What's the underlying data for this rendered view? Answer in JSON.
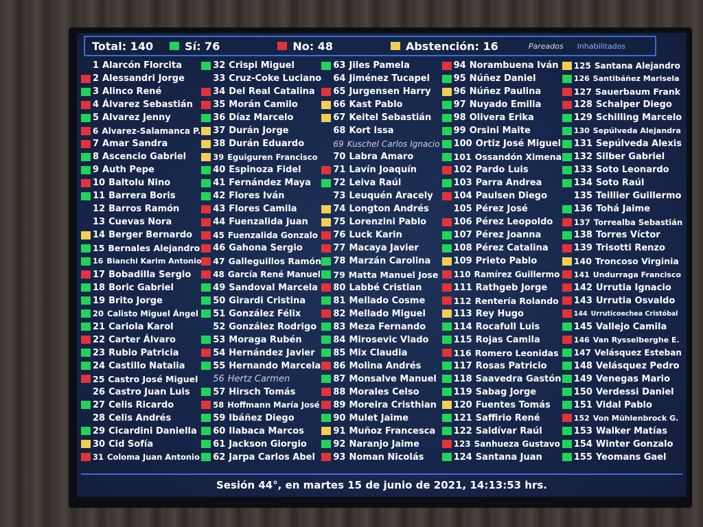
{
  "header": {
    "total": "Total: 140",
    "si": "Sí: 76",
    "no": "No: 48",
    "abstencion": "Abstención: 16",
    "pareados": "Pareados",
    "inhabilitados": "Inhabilitados"
  },
  "colors": {
    "si": "#22d35a",
    "no": "#e2323a",
    "abstencion": "#f2cf53",
    "background": "#16264a"
  },
  "footer": "Sesión 44°, en martes 15 de junio de 2021, 14:13:53 hrs.",
  "members": [
    [
      "1",
      "Alarcón Florcita",
      ""
    ],
    [
      "2",
      "Alessandri Jorge",
      "N"
    ],
    [
      "3",
      "Alinco René",
      "S"
    ],
    [
      "4",
      "Álvarez Sebastián",
      "N"
    ],
    [
      "5",
      "Alvarez Jenny",
      "S"
    ],
    [
      "6",
      "Alvarez-Salamanca P.",
      "N"
    ],
    [
      "7",
      "Amar Sandra",
      "N"
    ],
    [
      "8",
      "Ascencio Gabriel",
      "S"
    ],
    [
      "9",
      "Auth Pepe",
      "S"
    ],
    [
      "10",
      "Baltolu Nino",
      "N"
    ],
    [
      "11",
      "Barrera Boris",
      "S"
    ],
    [
      "12",
      "Barros Ramón",
      ""
    ],
    [
      "13",
      "Cuevas Nora",
      ""
    ],
    [
      "14",
      "Berger Bernardo",
      "A"
    ],
    [
      "15",
      "Bernales Alejandro",
      "S"
    ],
    [
      "16",
      "Bianchi Karim Antonio",
      "S"
    ],
    [
      "17",
      "Bobadilla Sergio",
      "N"
    ],
    [
      "18",
      "Boric Gabriel",
      "S"
    ],
    [
      "19",
      "Brito Jorge",
      "S"
    ],
    [
      "20",
      "Calisto Miguel Ángel",
      "S"
    ],
    [
      "21",
      "Cariola Karol",
      "S"
    ],
    [
      "22",
      "Carter Álvaro",
      "N"
    ],
    [
      "23",
      "Rubio Patricia",
      "S"
    ],
    [
      "24",
      "Castillo Natalia",
      "S"
    ],
    [
      "25",
      "Castro José Miguel",
      "N"
    ],
    [
      "26",
      "Castro Juan Luis",
      ""
    ],
    [
      "27",
      "Celis Ricardo",
      "S"
    ],
    [
      "28",
      "Celis Andrés",
      ""
    ],
    [
      "29",
      "Cicardini Daniella",
      "S"
    ],
    [
      "30",
      "Cid Sofía",
      "A"
    ],
    [
      "31",
      "Coloma Juan Antonio",
      "N"
    ],
    [
      "32",
      "Crispi Miguel",
      "S"
    ],
    [
      "33",
      "Cruz-Coke Luciano",
      ""
    ],
    [
      "34",
      "Del Real Catalina",
      "N"
    ],
    [
      "35",
      "Morán Camilo",
      "N"
    ],
    [
      "36",
      "Díaz Marcelo",
      "S"
    ],
    [
      "37",
      "Durán Jorge",
      "A"
    ],
    [
      "38",
      "Durán Eduardo",
      "A"
    ],
    [
      "39",
      "Eguiguren Francisco",
      "A"
    ],
    [
      "40",
      "Espinoza Fidel",
      "S"
    ],
    [
      "41",
      "Fernández Maya",
      "S"
    ],
    [
      "42",
      "Flores Iván",
      "S"
    ],
    [
      "43",
      "Flores Camila",
      "N"
    ],
    [
      "44",
      "Fuenzalida Juan",
      "N"
    ],
    [
      "45",
      "Fuenzalida Gonzalo",
      "N"
    ],
    [
      "46",
      "Gahona Sergio",
      "N"
    ],
    [
      "47",
      "Galleguillos Ramón",
      "N"
    ],
    [
      "48",
      "García René Manuel",
      "N"
    ],
    [
      "49",
      "Sandoval Marcela",
      "S"
    ],
    [
      "50",
      "Girardi Cristina",
      "S"
    ],
    [
      "51",
      "González Félix",
      "S"
    ],
    [
      "52",
      "González Rodrigo",
      ""
    ],
    [
      "53",
      "Moraga Rubén",
      "S"
    ],
    [
      "54",
      "Hernández Javier",
      "N"
    ],
    [
      "55",
      "Hernando Marcela",
      "S"
    ],
    [
      "56",
      "Hertz Carmen",
      "P"
    ],
    [
      "57",
      "Hirsch Tomás",
      "S"
    ],
    [
      "58",
      "Hoffmann María José",
      "N"
    ],
    [
      "59",
      "Ibáñez Diego",
      "S"
    ],
    [
      "60",
      "Ilabaca Marcos",
      "S"
    ],
    [
      "61",
      "Jackson Giorgio",
      "S"
    ],
    [
      "62",
      "Jarpa Carlos Abel",
      "S"
    ],
    [
      "63",
      "Jiles Pamela",
      "S"
    ],
    [
      "64",
      "Jiménez Tucapel",
      ""
    ],
    [
      "65",
      "Jurgensen Harry",
      "N"
    ],
    [
      "66",
      "Kast Pablo",
      "A"
    ],
    [
      "67",
      "Keitel Sebastián",
      "A"
    ],
    [
      "68",
      "Kort Issa",
      ""
    ],
    [
      "69",
      "Kuschel Carlos Ignacio",
      "P"
    ],
    [
      "70",
      "Labra Amaro",
      ""
    ],
    [
      "71",
      "Lavín Joaquín",
      "N"
    ],
    [
      "72",
      "Leiva Raúl",
      "S"
    ],
    [
      "73",
      "Leuquén Aracely",
      ""
    ],
    [
      "74",
      "Longton Andrés",
      "A"
    ],
    [
      "75",
      "Lorenzini Pablo",
      "A"
    ],
    [
      "76",
      "Luck Karin",
      "N"
    ],
    [
      "77",
      "Macaya Javier",
      "N"
    ],
    [
      "78",
      "Marzán Carolina",
      "S"
    ],
    [
      "79",
      "Matta Manuel Jose",
      "S"
    ],
    [
      "80",
      "Labbé Cristian",
      "N"
    ],
    [
      "81",
      "Mellado Cosme",
      "S"
    ],
    [
      "82",
      "Mellado Miguel",
      "N"
    ],
    [
      "83",
      "Meza Fernando",
      "S"
    ],
    [
      "84",
      "Mirosevic Vlado",
      "S"
    ],
    [
      "85",
      "Mix Claudia",
      "S"
    ],
    [
      "86",
      "Molina Andrés",
      "N"
    ],
    [
      "87",
      "Monsalve Manuel",
      "S"
    ],
    [
      "88",
      "Morales Celso",
      "N"
    ],
    [
      "89",
      "Moreira Cristhian",
      "N"
    ],
    [
      "90",
      "Mulet Jaime",
      "S"
    ],
    [
      "91",
      "Muñoz Francesca",
      "A"
    ],
    [
      "92",
      "Naranjo Jaime",
      "S"
    ],
    [
      "93",
      "Noman Nicolás",
      "N"
    ],
    [
      "94",
      "Norambuena Iván",
      "N"
    ],
    [
      "95",
      "Núñez Daniel",
      "S"
    ],
    [
      "96",
      "Núñez Paulina",
      "A"
    ],
    [
      "97",
      "Nuyado Emilia",
      "S"
    ],
    [
      "98",
      "Olivera Erika",
      "S"
    ],
    [
      "99",
      "Orsini Maite",
      "S"
    ],
    [
      "100",
      "Ortiz José Miguel",
      "S"
    ],
    [
      "101",
      "Ossandón Ximena",
      "S"
    ],
    [
      "102",
      "Pardo Luis",
      "N"
    ],
    [
      "103",
      "Parra Andrea",
      "S"
    ],
    [
      "104",
      "Paulsen Diego",
      "N"
    ],
    [
      "105",
      "Pérez José",
      ""
    ],
    [
      "106",
      "Pérez Leopoldo",
      "N"
    ],
    [
      "107",
      "Pérez Joanna",
      "S"
    ],
    [
      "108",
      "Pérez Catalina",
      "S"
    ],
    [
      "109",
      "Prieto Pablo",
      "A"
    ],
    [
      "110",
      "Ramírez Guillermo",
      "N"
    ],
    [
      "111",
      "Rathgeb Jorge",
      "N"
    ],
    [
      "112",
      "Rentería Rolando",
      "N"
    ],
    [
      "113",
      "Rey Hugo",
      "A"
    ],
    [
      "114",
      "Rocafull Luis",
      "S"
    ],
    [
      "115",
      "Rojas Camila",
      "S"
    ],
    [
      "116",
      "Romero Leonidas",
      "N"
    ],
    [
      "117",
      "Rosas Patricio",
      "S"
    ],
    [
      "118",
      "Saavedra Gastón",
      "S"
    ],
    [
      "119",
      "Sabag Jorge",
      "S"
    ],
    [
      "120",
      "Fuentes Tomás",
      "A"
    ],
    [
      "121",
      "Saffirio René",
      "S"
    ],
    [
      "122",
      "Saldívar Raúl",
      "S"
    ],
    [
      "123",
      "Sanhueza Gustavo",
      "N"
    ],
    [
      "124",
      "Santana Juan",
      "S"
    ],
    [
      "125",
      "Santana Alejandro",
      "A"
    ],
    [
      "126",
      "Santibáñez Marisela",
      "S"
    ],
    [
      "127",
      "Sauerbaum Frank",
      "N"
    ],
    [
      "128",
      "Schalper Diego",
      "N"
    ],
    [
      "129",
      "Schilling Marcelo",
      "S"
    ],
    [
      "130",
      "Sepúlveda Alejandra",
      "S"
    ],
    [
      "131",
      "Sepúlveda Alexis",
      "S"
    ],
    [
      "132",
      "Silber Gabriel",
      "S"
    ],
    [
      "133",
      "Soto Leonardo",
      "S"
    ],
    [
      "134",
      "Soto Raúl",
      "S"
    ],
    [
      "135",
      "Teillier Guillermo",
      ""
    ],
    [
      "136",
      "Tohá Jaime",
      "S"
    ],
    [
      "137",
      "Torrealba Sebastián",
      "N"
    ],
    [
      "138",
      "Torres Víctor",
      "S"
    ],
    [
      "139",
      "Trisotti Renzo",
      "N"
    ],
    [
      "140",
      "Troncoso Virginia",
      "A"
    ],
    [
      "141",
      "Undurraga Francisco",
      "N"
    ],
    [
      "142",
      "Urrutia Ignacio",
      "N"
    ],
    [
      "143",
      "Urrutia Osvaldo",
      "N"
    ],
    [
      "144",
      "Urruticoechea Cristóbal",
      "N"
    ],
    [
      "145",
      "Vallejo Camila",
      "S"
    ],
    [
      "146",
      "Van Rysselberghe E.",
      "N"
    ],
    [
      "147",
      "Velásquez Esteban",
      "S"
    ],
    [
      "148",
      "Velásquez Pedro",
      "S"
    ],
    [
      "149",
      "Venegas Mario",
      "S"
    ],
    [
      "150",
      "Verdessi Daniel",
      "S"
    ],
    [
      "151",
      "Vidal Pablo",
      "S"
    ],
    [
      "152",
      "Von Mühlenbrock G.",
      "N"
    ],
    [
      "153",
      "Walker Matías",
      "S"
    ],
    [
      "154",
      "Winter Gonzalo",
      "S"
    ],
    [
      "155",
      "Yeomans Gael",
      "S"
    ]
  ]
}
